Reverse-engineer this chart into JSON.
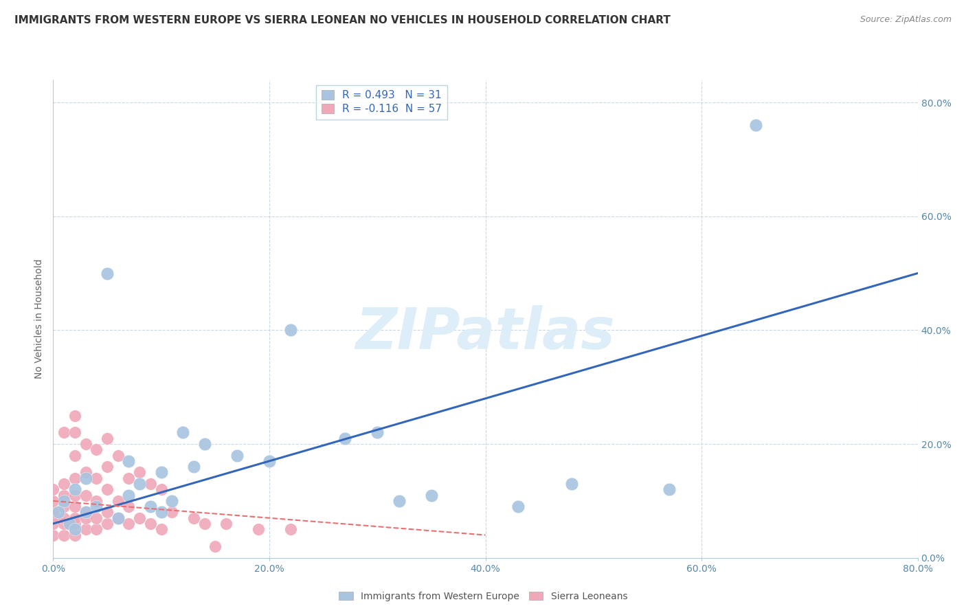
{
  "title": "IMMIGRANTS FROM WESTERN EUROPE VS SIERRA LEONEAN NO VEHICLES IN HOUSEHOLD CORRELATION CHART",
  "source": "Source: ZipAtlas.com",
  "ylabel": "No Vehicles in Household",
  "xlim": [
    0.0,
    0.8
  ],
  "ylim": [
    0.0,
    0.84
  ],
  "xticks": [
    0.0,
    0.2,
    0.4,
    0.6,
    0.8
  ],
  "yticks": [
    0.0,
    0.2,
    0.4,
    0.6,
    0.8
  ],
  "xtick_labels": [
    "0.0%",
    "20.0%",
    "40.0%",
    "60.0%",
    "80.0%"
  ],
  "ytick_labels": [
    "0.0%",
    "20.0%",
    "40.0%",
    "60.0%",
    "80.0%"
  ],
  "blue_R": 0.493,
  "blue_N": 31,
  "pink_R": -0.116,
  "pink_N": 57,
  "blue_color": "#a8c4e0",
  "pink_color": "#f0a8b8",
  "blue_line_color": "#3366BB",
  "pink_line_color": "#e87070",
  "watermark": "ZIPatlas",
  "watermark_color": "#ddeef8",
  "background_color": "#ffffff",
  "grid_color": "#c8d8e8",
  "title_fontsize": 11,
  "axis_label_fontsize": 10,
  "tick_fontsize": 10,
  "legend_fontsize": 11,
  "blue_scatter_x": [
    0.005,
    0.01,
    0.015,
    0.02,
    0.02,
    0.03,
    0.03,
    0.04,
    0.05,
    0.06,
    0.07,
    0.07,
    0.08,
    0.09,
    0.1,
    0.1,
    0.11,
    0.12,
    0.13,
    0.14,
    0.17,
    0.2,
    0.22,
    0.27,
    0.3,
    0.32,
    0.35,
    0.43,
    0.48,
    0.57,
    0.65
  ],
  "blue_scatter_y": [
    0.08,
    0.1,
    0.06,
    0.05,
    0.12,
    0.08,
    0.14,
    0.09,
    0.5,
    0.07,
    0.11,
    0.17,
    0.13,
    0.09,
    0.15,
    0.08,
    0.1,
    0.22,
    0.16,
    0.2,
    0.18,
    0.17,
    0.4,
    0.21,
    0.22,
    0.1,
    0.11,
    0.09,
    0.13,
    0.12,
    0.76
  ],
  "pink_scatter_x": [
    0.0,
    0.0,
    0.0,
    0.0,
    0.0,
    0.0,
    0.01,
    0.01,
    0.01,
    0.01,
    0.01,
    0.01,
    0.01,
    0.02,
    0.02,
    0.02,
    0.02,
    0.02,
    0.02,
    0.02,
    0.02,
    0.02,
    0.03,
    0.03,
    0.03,
    0.03,
    0.03,
    0.03,
    0.04,
    0.04,
    0.04,
    0.04,
    0.04,
    0.05,
    0.05,
    0.05,
    0.05,
    0.05,
    0.06,
    0.06,
    0.06,
    0.07,
    0.07,
    0.07,
    0.08,
    0.08,
    0.09,
    0.09,
    0.1,
    0.1,
    0.11,
    0.13,
    0.14,
    0.16,
    0.19,
    0.15,
    0.22
  ],
  "pink_scatter_y": [
    0.04,
    0.06,
    0.07,
    0.08,
    0.1,
    0.12,
    0.04,
    0.06,
    0.07,
    0.09,
    0.11,
    0.13,
    0.22,
    0.04,
    0.06,
    0.07,
    0.09,
    0.11,
    0.14,
    0.18,
    0.22,
    0.25,
    0.05,
    0.07,
    0.08,
    0.11,
    0.15,
    0.2,
    0.05,
    0.07,
    0.1,
    0.14,
    0.19,
    0.06,
    0.08,
    0.12,
    0.16,
    0.21,
    0.07,
    0.1,
    0.18,
    0.06,
    0.09,
    0.14,
    0.07,
    0.15,
    0.06,
    0.13,
    0.05,
    0.12,
    0.08,
    0.07,
    0.06,
    0.06,
    0.05,
    0.02,
    0.05
  ],
  "blue_line_x0": 0.0,
  "blue_line_y0": 0.06,
  "blue_line_x1": 0.8,
  "blue_line_y1": 0.5,
  "pink_line_x0": 0.0,
  "pink_line_y0": 0.1,
  "pink_line_x1": 0.4,
  "pink_line_y1": 0.04
}
